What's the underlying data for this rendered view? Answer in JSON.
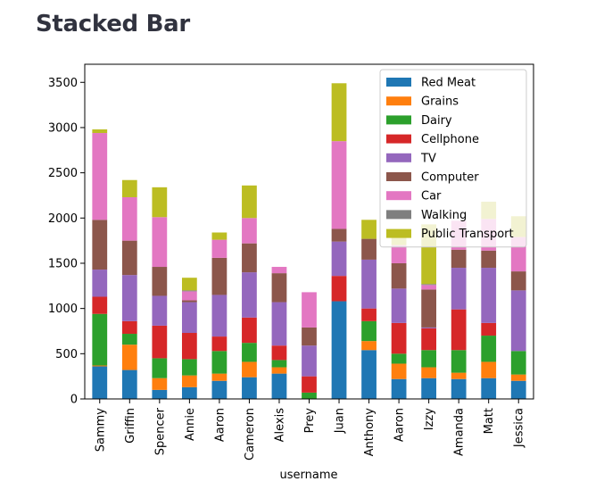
{
  "page": {
    "title": "Stacked Bar"
  },
  "chart_data": {
    "type": "bar",
    "stacked": true,
    "title": "",
    "xlabel": "username",
    "ylabel": "",
    "ylim": [
      0,
      3700
    ],
    "yticks": [
      0,
      500,
      1000,
      1500,
      2000,
      2500,
      3000,
      3500
    ],
    "legend_position": "top-right",
    "categories": [
      "Sammy",
      "Griffin",
      "Spencer",
      "Annie",
      "Aaron",
      "Cameron",
      "Alexis",
      "Prey",
      "Juan",
      "Anthony",
      "Aaron",
      "Izzy",
      "Amanda",
      "Matt",
      "Jessica"
    ],
    "series": [
      {
        "name": "Red Meat",
        "color": "#1f77b4",
        "values": [
          360,
          320,
          100,
          130,
          200,
          240,
          280,
          0,
          1080,
          540,
          220,
          230,
          220,
          230,
          200
        ]
      },
      {
        "name": "Grains",
        "color": "#ff7f0e",
        "values": [
          10,
          280,
          130,
          130,
          80,
          170,
          70,
          0,
          0,
          100,
          170,
          120,
          70,
          180,
          70
        ]
      },
      {
        "name": "Dairy",
        "color": "#2ca02c",
        "values": [
          570,
          120,
          220,
          180,
          250,
          210,
          80,
          70,
          0,
          220,
          110,
          190,
          250,
          290,
          260
        ]
      },
      {
        "name": "Cellphone",
        "color": "#d62728",
        "values": [
          190,
          140,
          360,
          290,
          160,
          280,
          160,
          180,
          280,
          140,
          340,
          240,
          450,
          140,
          0
        ]
      },
      {
        "name": "TV",
        "color": "#9467bd",
        "values": [
          300,
          510,
          330,
          340,
          460,
          500,
          480,
          340,
          380,
          540,
          380,
          10,
          460,
          610,
          670
        ]
      },
      {
        "name": "Computer",
        "color": "#8c564b",
        "values": [
          550,
          380,
          320,
          20,
          410,
          320,
          320,
          200,
          140,
          230,
          280,
          420,
          200,
          190,
          210
        ]
      },
      {
        "name": "Car",
        "color": "#e377c2",
        "values": [
          960,
          480,
          550,
          100,
          200,
          280,
          70,
          390,
          970,
          0,
          200,
          50,
          320,
          350,
          380
        ]
      },
      {
        "name": "Walking",
        "color": "#7f7f7f",
        "values": [
          0,
          0,
          0,
          10,
          0,
          0,
          0,
          0,
          0,
          0,
          0,
          10,
          0,
          0,
          0
        ]
      },
      {
        "name": "Public Transport",
        "color": "#bcbd22",
        "values": [
          40,
          190,
          330,
          140,
          80,
          360,
          0,
          0,
          640,
          210,
          90,
          660,
          0,
          190,
          230
        ]
      }
    ]
  }
}
